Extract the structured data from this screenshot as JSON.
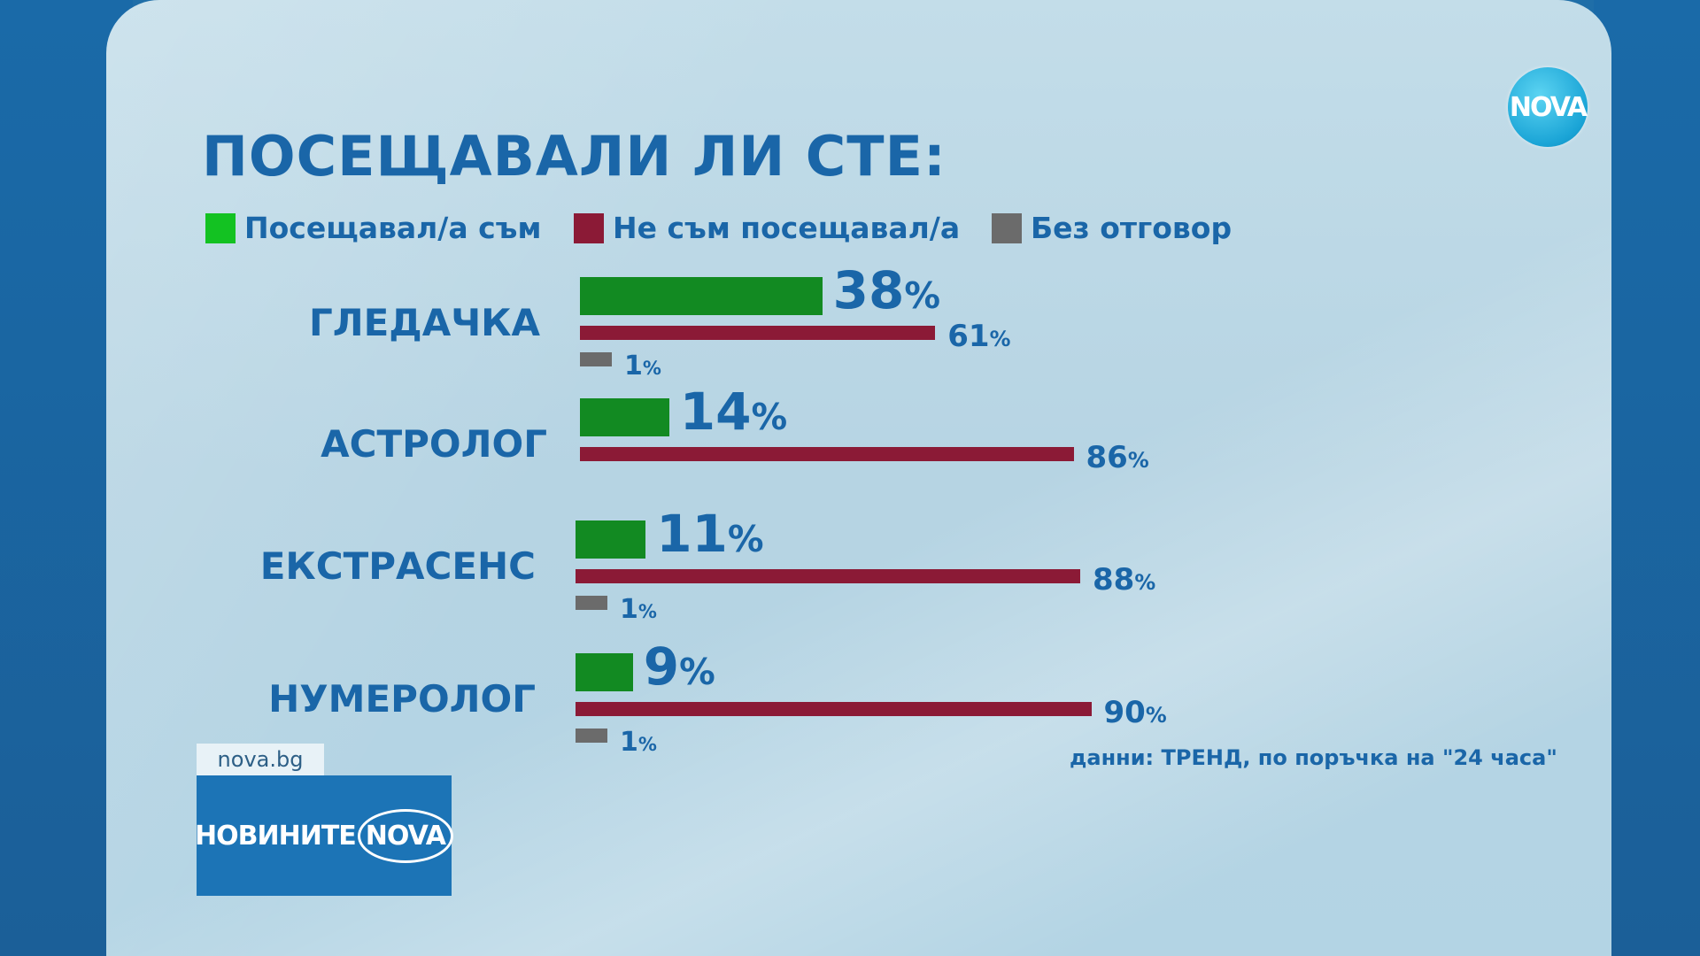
{
  "title": "ПОСЕЩАВАЛИ ЛИ СТЕ:",
  "logo_text": "NOVA",
  "site": "nova.bg",
  "brand": {
    "text1": "НОВИНИТЕ",
    "text2": "NOVA"
  },
  "source": "данни: ТРЕНД, по поръчка на \"24 часа\"",
  "colors": {
    "visited": "#128a22",
    "not_visited": "#8b1a36",
    "no_answer": "#6b6b6b",
    "text": "#1a66a8"
  },
  "chart_data": {
    "type": "bar",
    "orientation": "horizontal",
    "title": "ПОСЕЩАВАЛИ ЛИ СТЕ:",
    "categories": [
      "ГЛЕДАЧКА",
      "АСТРОЛОГ",
      "ЕКСТРАСЕНС",
      "НУМЕРОЛОГ"
    ],
    "series": [
      {
        "name": "Посещавал/а съм",
        "values": [
          38,
          14,
          11,
          9
        ],
        "labels": [
          "38",
          "14",
          "11",
          "9"
        ]
      },
      {
        "name": "Не съм посещавал/а",
        "values": [
          61,
          86,
          88,
          90
        ],
        "labels": [
          "61",
          "86",
          "88",
          "90"
        ]
      },
      {
        "name": "Без отговор",
        "values": [
          1,
          null,
          1,
          1
        ],
        "labels": [
          "1",
          "",
          "1",
          "1"
        ]
      }
    ],
    "unit": "%",
    "legend_position": "top"
  }
}
